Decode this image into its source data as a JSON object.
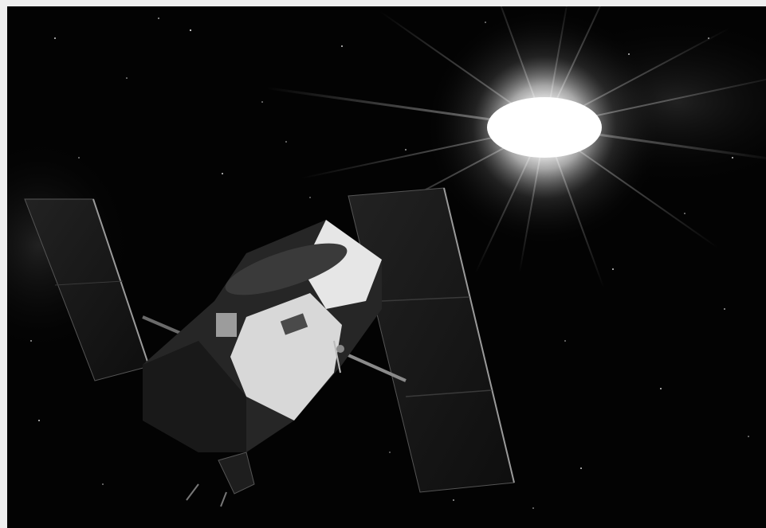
{
  "image": {
    "subjects": [
      "satellite-icon",
      "sun-icon",
      "solar-panel-icon",
      "star-icon"
    ],
    "palette": {
      "background": "#efefef",
      "space": "#030303",
      "panel": "#1a1a1a",
      "body_light": "#e8e8e8",
      "body_dark": "#2a2a2a",
      "glow": "#ffffff"
    }
  }
}
